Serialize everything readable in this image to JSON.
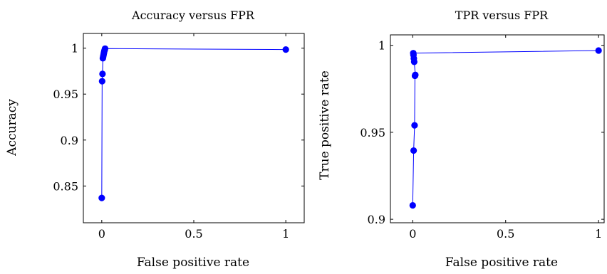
{
  "chart_data": [
    {
      "type": "line",
      "title": "Accuracy versus FPR",
      "xlabel": "False positive rate",
      "ylabel": "Accuracy",
      "xlim": [
        -0.1,
        1.1
      ],
      "ylim": [
        0.81,
        1.016
      ],
      "xticks": [
        0,
        0.5,
        1
      ],
      "xtick_labels": [
        "0",
        "0.5",
        "1"
      ],
      "yticks": [
        0.85,
        0.9,
        0.95,
        1
      ],
      "ytick_labels": [
        "0.85",
        "0.9",
        "0.95",
        "1"
      ],
      "grid": false,
      "color": "#0000ff",
      "series": [
        {
          "x": [
            0.0,
            0.002,
            0.004,
            0.006,
            0.008,
            0.01,
            0.012,
            0.014,
            0.016,
            0.018,
            1.0
          ],
          "y": [
            0.837,
            0.964,
            0.972,
            0.989,
            0.991,
            0.993,
            0.995,
            0.997,
            0.998,
            0.9995,
            0.9985
          ]
        }
      ]
    },
    {
      "type": "line",
      "title": "TPR versus FPR",
      "xlabel": "False positive rate",
      "ylabel": "True positive rate",
      "xlim": [
        -0.12,
        1.03
      ],
      "ylim": [
        0.898,
        1.006
      ],
      "xticks": [
        0,
        0.5,
        1
      ],
      "xtick_labels": [
        "0",
        "0.5",
        "1"
      ],
      "yticks": [
        0.9,
        0.95,
        1
      ],
      "ytick_labels": [
        "0.9",
        "0.95",
        "1"
      ],
      "grid": false,
      "color": "#0000ff",
      "series": [
        {
          "x": [
            0.0,
            0.005,
            0.01,
            0.012,
            0.014,
            0.008,
            0.006,
            0.004,
            0.003,
            1.0
          ],
          "y": [
            0.908,
            0.9395,
            0.954,
            0.9825,
            0.983,
            0.9905,
            0.9925,
            0.9945,
            0.9955,
            0.997
          ]
        }
      ]
    }
  ]
}
